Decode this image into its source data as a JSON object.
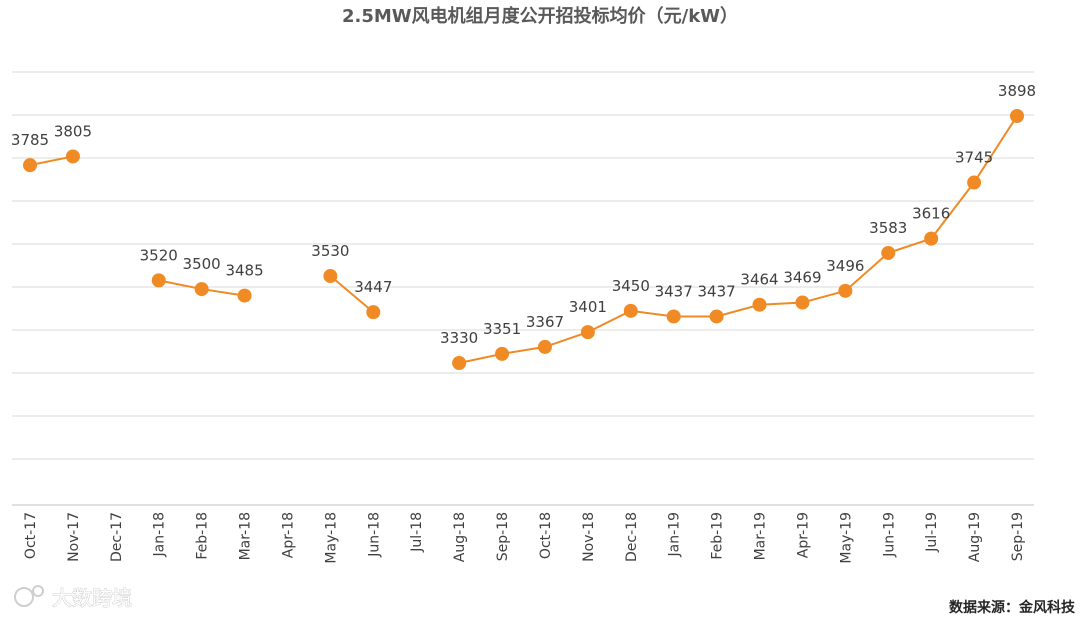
{
  "chart_data": {
    "type": "line",
    "title": "2.5MW风电机组月度公开招投标均价（元/kW）",
    "categories": [
      "Oct-17",
      "Nov-17",
      "Dec-17",
      "Jan-18",
      "Feb-18",
      "Mar-18",
      "Apr-18",
      "May-18",
      "Jun-18",
      "Jul-18",
      "Aug-18",
      "Sep-18",
      "Oct-18",
      "Nov-18",
      "Dec-18",
      "Jan-19",
      "Feb-19",
      "Mar-19",
      "Apr-19",
      "May-19",
      "Jun-19",
      "Jul-19",
      "Aug-19",
      "Sep-19"
    ],
    "values": [
      3785,
      3805,
      null,
      3520,
      3500,
      3485,
      null,
      3530,
      3447,
      null,
      3330,
      3351,
      3367,
      3401,
      3450,
      3437,
      3437,
      3464,
      3469,
      3496,
      3583,
      3616,
      3745,
      3898
    ],
    "ylim": [
      3250,
      3950
    ],
    "grid": true,
    "xlabel": "",
    "ylabel": "",
    "color": "#f08a24"
  },
  "source": "数据来源：金风科技",
  "watermark": "大数跨境"
}
